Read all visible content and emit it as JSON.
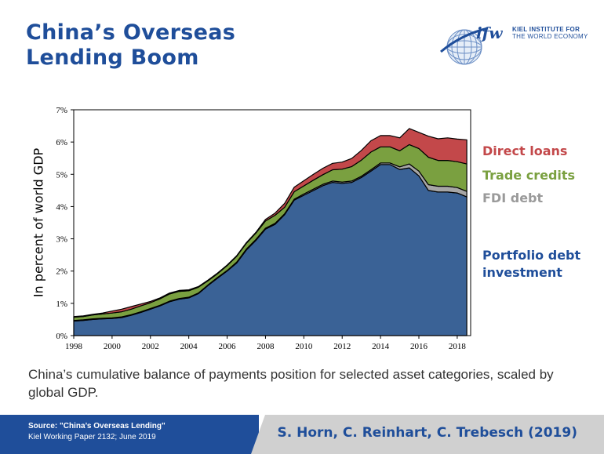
{
  "header": {
    "title_line1": "China’s Overseas",
    "title_line2": "Lending Boom"
  },
  "logo": {
    "mark": "ifw",
    "line1": "KIEL INSTITUTE FOR",
    "line2": "THE WORLD ECONOMY",
    "icon": "globe-icon"
  },
  "legend": {
    "direct": "Direct loans",
    "trade": "Trade credits",
    "fdi": "FDI debt",
    "portfolio_line1": "Portfolio debt",
    "portfolio_line2": "investment"
  },
  "colors": {
    "portfolio": "#3a6296",
    "fdi": "#a6a6a6",
    "trade": "#7aa040",
    "direct": "#c3484a",
    "title": "#1f4e9a"
  },
  "chart_data": {
    "type": "area",
    "stacked": true,
    "ylabel": "In percent of world GDP",
    "xlabel": "",
    "xlim": [
      1998,
      2018.7
    ],
    "ylim": [
      0,
      7
    ],
    "x_ticks": [
      "1998",
      "2000",
      "2002",
      "2004",
      "2006",
      "2008",
      "2010",
      "2012",
      "2014",
      "2016",
      "2018"
    ],
    "y_ticks": [
      "0%",
      "1%",
      "2%",
      "3%",
      "4%",
      "5%",
      "6%",
      "7%"
    ],
    "x": [
      1998.0,
      1998.5,
      1999.0,
      1999.5,
      2000.0,
      2000.5,
      2001.0,
      2001.5,
      2002.0,
      2002.5,
      2003.0,
      2003.5,
      2004.0,
      2004.5,
      2005.0,
      2005.5,
      2006.0,
      2006.5,
      2007.0,
      2007.5,
      2008.0,
      2008.5,
      2009.0,
      2009.5,
      2010.0,
      2010.5,
      2011.0,
      2011.5,
      2012.0,
      2012.5,
      2013.0,
      2013.5,
      2014.0,
      2014.5,
      2015.0,
      2015.5,
      2016.0,
      2016.5,
      2017.0,
      2017.5,
      2018.0,
      2018.5
    ],
    "series": [
      {
        "name": "Portfolio debt investment",
        "values": [
          0.45,
          0.47,
          0.5,
          0.52,
          0.53,
          0.56,
          0.63,
          0.72,
          0.82,
          0.92,
          1.05,
          1.13,
          1.17,
          1.3,
          1.55,
          1.78,
          2.0,
          2.25,
          2.65,
          2.95,
          3.3,
          3.45,
          3.75,
          4.2,
          4.35,
          4.5,
          4.65,
          4.75,
          4.72,
          4.75,
          4.9,
          5.1,
          5.3,
          5.3,
          5.15,
          5.2,
          4.95,
          4.5,
          4.45,
          4.45,
          4.42,
          4.3
        ]
      },
      {
        "name": "FDI debt",
        "values": [
          0.02,
          0.02,
          0.02,
          0.02,
          0.02,
          0.02,
          0.02,
          0.02,
          0.02,
          0.02,
          0.02,
          0.02,
          0.02,
          0.02,
          0.02,
          0.02,
          0.02,
          0.03,
          0.03,
          0.03,
          0.03,
          0.03,
          0.03,
          0.03,
          0.04,
          0.04,
          0.04,
          0.04,
          0.04,
          0.04,
          0.04,
          0.04,
          0.05,
          0.05,
          0.08,
          0.12,
          0.15,
          0.18,
          0.18,
          0.18,
          0.17,
          0.17
        ]
      },
      {
        "name": "Trade credits",
        "values": [
          0.1,
          0.1,
          0.12,
          0.13,
          0.15,
          0.16,
          0.17,
          0.18,
          0.18,
          0.2,
          0.22,
          0.22,
          0.2,
          0.18,
          0.13,
          0.12,
          0.15,
          0.18,
          0.18,
          0.2,
          0.22,
          0.25,
          0.2,
          0.23,
          0.25,
          0.28,
          0.3,
          0.35,
          0.4,
          0.45,
          0.5,
          0.55,
          0.5,
          0.5,
          0.5,
          0.6,
          0.7,
          0.85,
          0.8,
          0.8,
          0.8,
          0.85
        ]
      },
      {
        "name": "Direct loans",
        "values": [
          0.02,
          0.02,
          0.02,
          0.03,
          0.06,
          0.08,
          0.08,
          0.06,
          0.04,
          0.03,
          0.03,
          0.03,
          0.03,
          0.02,
          0.02,
          0.02,
          0.02,
          0.02,
          0.02,
          0.02,
          0.05,
          0.07,
          0.12,
          0.14,
          0.16,
          0.18,
          0.2,
          0.2,
          0.22,
          0.25,
          0.3,
          0.35,
          0.35,
          0.35,
          0.4,
          0.5,
          0.5,
          0.65,
          0.67,
          0.7,
          0.7,
          0.75
        ]
      }
    ]
  },
  "caption": "China’s cumulative balance of payments position for selected asset categories, scaled by global GDP.",
  "footer": {
    "source_title": "Source:  \"China’s Overseas Lending\"",
    "source_sub": "Kiel Working Paper 2132; June 2019",
    "authors": "S. Horn, C. Reinhart, C. Trebesch (2019)"
  }
}
